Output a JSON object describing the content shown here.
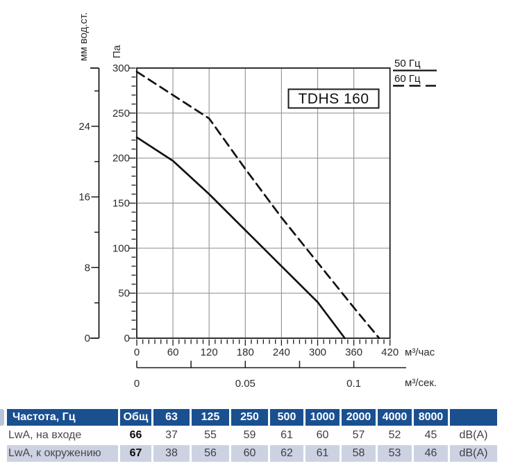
{
  "chart_data": {
    "type": "line",
    "title": "TDHS 160",
    "xlabel": "м³/час",
    "xlabel2": "м³/сек.",
    "ylabel": "Па",
    "ylabel2": "мм вод.ст.",
    "xlim": [
      0,
      420
    ],
    "ylim": [
      0,
      300
    ],
    "grid": true,
    "legend_position": "top-right",
    "x_ticks": [
      0,
      60,
      120,
      180,
      240,
      300,
      360,
      420
    ],
    "x2_ticks": [
      "0",
      "0.05",
      "0.1"
    ],
    "y_ticks": [
      0,
      50,
      100,
      150,
      200,
      250,
      300
    ],
    "y2_ticks": [
      0,
      8,
      16,
      24
    ],
    "series": [
      {
        "name": "50 Гц",
        "line_style": "solid",
        "points": [
          [
            0,
            223
          ],
          [
            60,
            197
          ],
          [
            120,
            160
          ],
          [
            180,
            120
          ],
          [
            240,
            80
          ],
          [
            300,
            40
          ],
          [
            345,
            0
          ]
        ]
      },
      {
        "name": "60 Гц",
        "line_style": "dashed",
        "points": [
          [
            0,
            296
          ],
          [
            60,
            270
          ],
          [
            120,
            244
          ],
          [
            180,
            188
          ],
          [
            240,
            134
          ],
          [
            300,
            84
          ],
          [
            360,
            34
          ],
          [
            402,
            0
          ]
        ]
      }
    ]
  },
  "table": {
    "header": [
      "Частота, Гц",
      "Общ",
      "63",
      "125",
      "250",
      "500",
      "1000",
      "2000",
      "4000",
      "8000",
      ""
    ],
    "rows": [
      {
        "label": "LwA, на входе",
        "total": "66",
        "values": [
          "37",
          "55",
          "59",
          "61",
          "60",
          "57",
          "52",
          "45"
        ],
        "unit": "dB(A)"
      },
      {
        "label": "LwA, к окружению",
        "total": "67",
        "values": [
          "38",
          "56",
          "60",
          "62",
          "61",
          "58",
          "53",
          "46"
        ],
        "unit": "dB(A)"
      }
    ]
  },
  "colors": {
    "header_bg": "#1a5090",
    "row_alt_bg": "#ccd2e2",
    "grid_line": "#999999",
    "axis_line": "#1a1a1a",
    "curve": "#111111"
  }
}
